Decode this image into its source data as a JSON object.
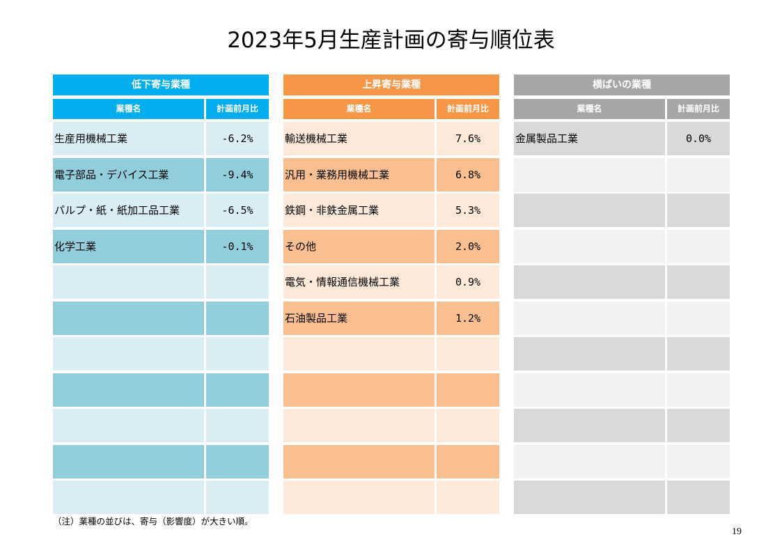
{
  "title": "2023年5月生産計画の寄与順位表",
  "panels": [
    {
      "heading": "低下寄与業種",
      "col_name": "業種名",
      "col_value": "計画前月比",
      "rows": [
        {
          "name": "生産用機械工業",
          "value": "-6.2%"
        },
        {
          "name": "電子部品・デバイス工業",
          "value": "-9.4%"
        },
        {
          "name": "パルプ・紙・紙加工品工業",
          "value": "-6.5%"
        },
        {
          "name": "化学工業",
          "value": "-0.1%"
        },
        {
          "name": "",
          "value": ""
        },
        {
          "name": "",
          "value": ""
        },
        {
          "name": "",
          "value": ""
        },
        {
          "name": "",
          "value": ""
        },
        {
          "name": "",
          "value": ""
        },
        {
          "name": "",
          "value": ""
        },
        {
          "name": "",
          "value": ""
        }
      ]
    },
    {
      "heading": "上昇寄与業種",
      "col_name": "業種名",
      "col_value": "計画前月比",
      "rows": [
        {
          "name": "輸送機械工業",
          "value": "7.6%"
        },
        {
          "name": "汎用・業務用機械工業",
          "value": "6.8%"
        },
        {
          "name": "鉄鋼・非鉄金属工業",
          "value": "5.3%"
        },
        {
          "name": "その他",
          "value": "2.0%"
        },
        {
          "name": "電気・情報通信機械工業",
          "value": "0.9%"
        },
        {
          "name": "石油製品工業",
          "value": "1.2%"
        },
        {
          "name": "",
          "value": ""
        },
        {
          "name": "",
          "value": ""
        },
        {
          "name": "",
          "value": ""
        },
        {
          "name": "",
          "value": ""
        },
        {
          "name": "",
          "value": ""
        }
      ]
    },
    {
      "heading": "横ばいの業種",
      "col_name": "業種名",
      "col_value": "計画前月比",
      "rows": [
        {
          "name": "金属製品工業",
          "value": "0.0%"
        },
        {
          "name": "",
          "value": ""
        },
        {
          "name": "",
          "value": ""
        },
        {
          "name": "",
          "value": ""
        },
        {
          "name": "",
          "value": ""
        },
        {
          "name": "",
          "value": ""
        },
        {
          "name": "",
          "value": ""
        },
        {
          "name": "",
          "value": ""
        },
        {
          "name": "",
          "value": ""
        },
        {
          "name": "",
          "value": ""
        },
        {
          "name": "",
          "value": ""
        }
      ]
    }
  ],
  "note": "（注）業種の並びは、寄与（影響度）が大きい順。",
  "page_number": "19"
}
